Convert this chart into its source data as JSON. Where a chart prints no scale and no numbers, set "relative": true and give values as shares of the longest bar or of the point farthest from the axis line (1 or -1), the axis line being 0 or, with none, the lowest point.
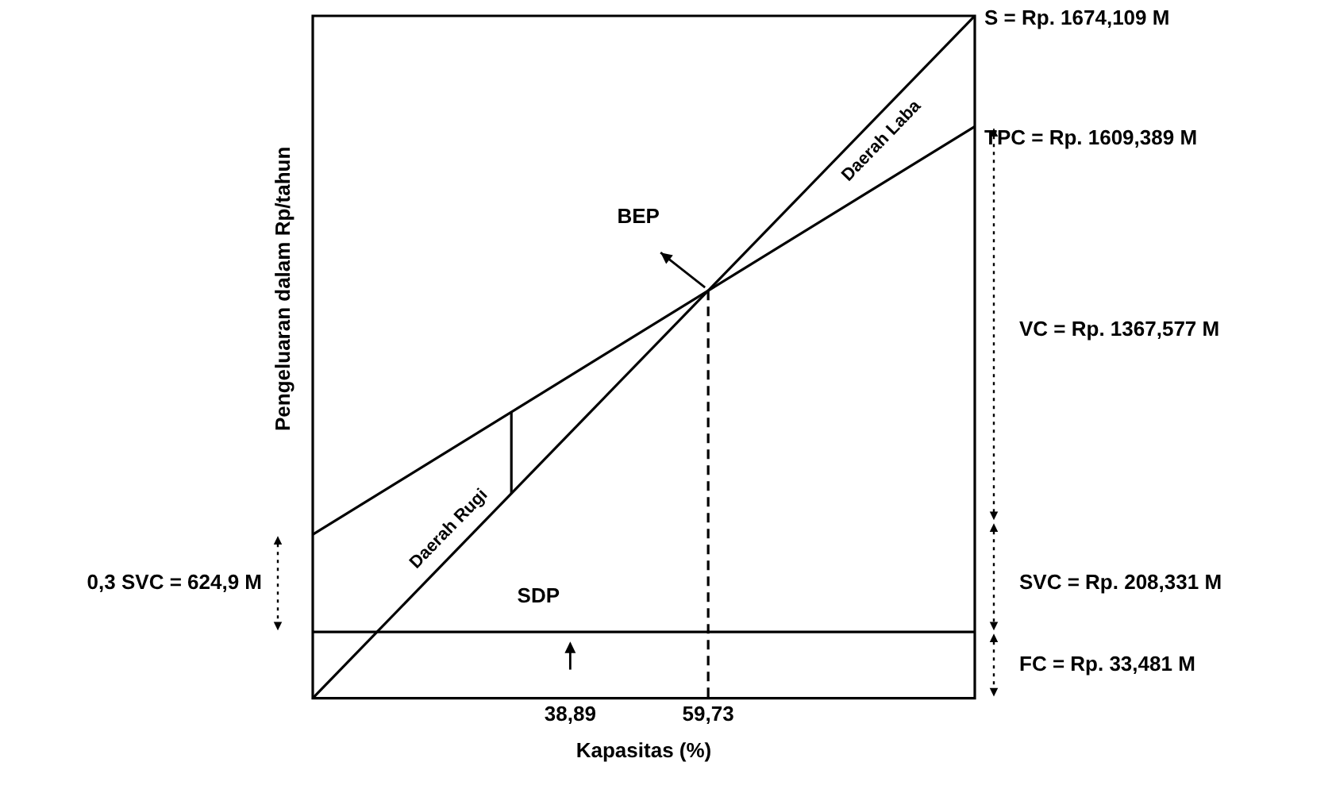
{
  "chart_data": {
    "type": "line",
    "relative": true,
    "xlabel": "Kapasitas (%)",
    "ylabel": "Pengeluaran dalam Rp/tahun",
    "xlim": [
      0,
      100
    ],
    "xticks": [
      {
        "value": 38.89,
        "label": "38,89"
      },
      {
        "value": 59.73,
        "label": "59,73"
      }
    ],
    "grid": false,
    "legend": false,
    "marker": "none",
    "series": [
      {
        "color": "#000000",
        "x": [
          0,
          100
        ],
        "values": [
          0,
          1
        ]
      },
      {
        "color": "#000000",
        "x": [
          0,
          100
        ],
        "values": [
          0.24,
          0.838
        ]
      },
      {
        "color": "#000000",
        "x": [
          0,
          100
        ],
        "values": [
          0.097,
          0.097
        ]
      },
      {
        "color": "#000000",
        "x": [
          30,
          30
        ],
        "values": [
          0.3,
          0.419
        ]
      },
      {
        "color": "#000000",
        "x": [
          59.73,
          59.73
        ],
        "values": [
          0.5973,
          0
        ],
        "line_style": "dashed"
      }
    ],
    "annotations": [
      {
        "text": "S = Rp. 1674,109 M",
        "x": 100,
        "y": 1
      },
      {
        "text": "TPC = Rp. 1609,389 M",
        "x": 100,
        "y": 0.838
      },
      "BEP",
      "SDP",
      "Daerah Rugi",
      "Daerah Laba",
      "VC = Rp. 1367,577 M",
      "SVC = Rp. 208,331 M",
      "FC = Rp. 33,481 M",
      "0,3 SVC = 624,9 M"
    ]
  }
}
